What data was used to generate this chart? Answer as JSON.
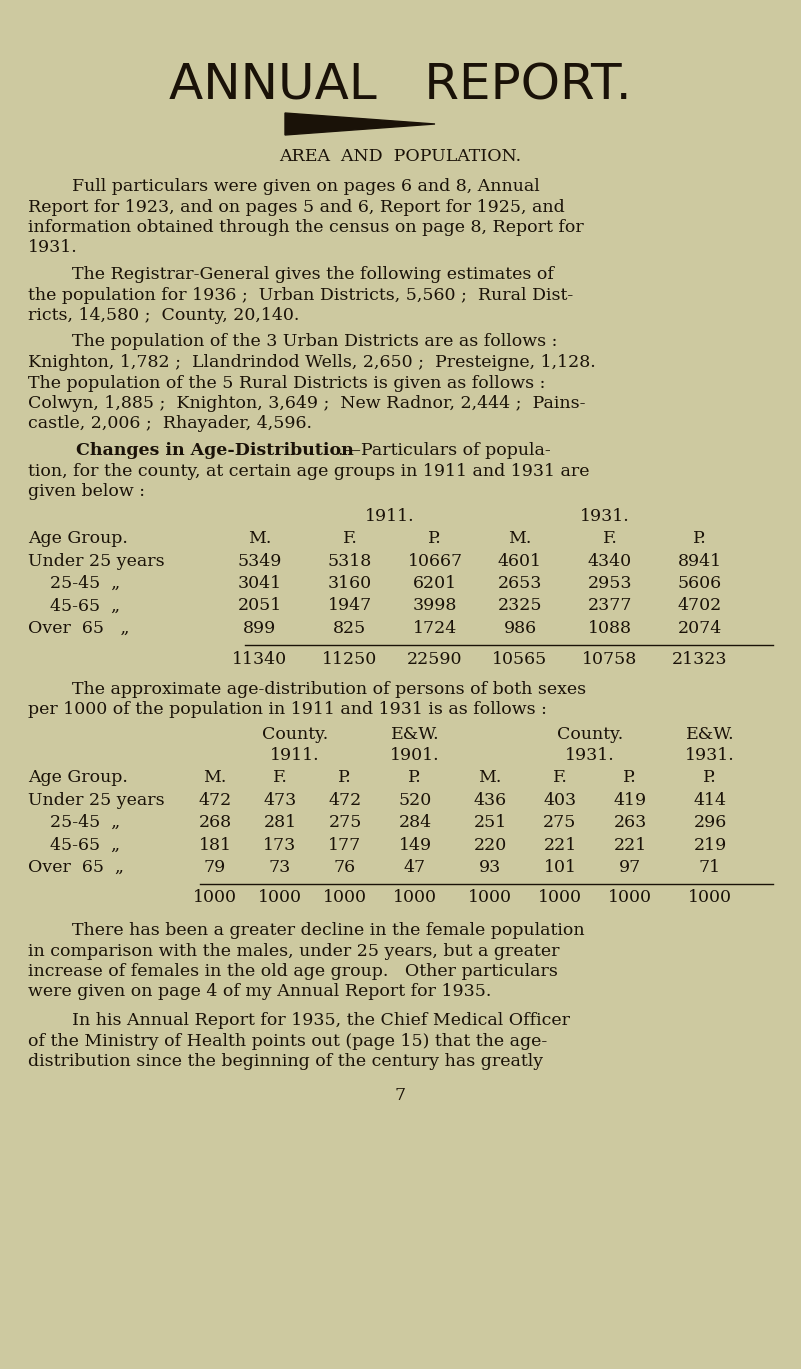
{
  "bg_color": "#cdc9a0",
  "text_color": "#1a1208",
  "title": "ANNUAL   REPORT.",
  "section_heading": "AREA  AND  POPULATION.",
  "para1_lines": [
    "        Full particulars were given on pages 6 and 8, Annual",
    "Report for 1923, and on pages 5 and 6, Report for 1925, and",
    "information obtained through the census on page 8, Report for",
    "1931."
  ],
  "para2_lines": [
    "        The Registrar-General gives the following estimates of",
    "the population for 1936 ;  Urban Districts, 5,560 ;  Rural Dist-",
    "ricts, 14,580 ;  County, 20,140."
  ],
  "para3_lines": [
    "        The population of the 3 Urban Districts are as follows :",
    "Knighton, 1,782 ;  Llandrindod Wells, 2,650 ;  Presteigne, 1,128.",
    "The population of the 5 Rural Districts is given as follows :",
    "Colwyn, 1,885 ;  Knighton, 3,649 ;  New Radnor, 2,444 ;  Pains-",
    "castle, 2,006 ;  Rhayader, 4,596."
  ],
  "changes_line1_bold": "        Changes in Age-Distribution",
  "changes_line1_normal": ".—Particulars of popula-",
  "changes_line2": "tion, for the county, at certain age groups in 1911 and 1931 are",
  "changes_line3": "given below :",
  "t1_year1_label": "1911.",
  "t1_year2_label": "1931.",
  "t1_col_headers": [
    "Age Group.",
    "M.",
    "F.",
    "P.",
    "M.",
    "F.",
    "P."
  ],
  "t1_rows": [
    [
      "Under 25 years",
      "5349",
      "5318",
      "10667",
      "4601",
      "4340",
      "8941"
    ],
    [
      "    25-45  „",
      "3041",
      "3160",
      "6201",
      "2653",
      "2953",
      "5606"
    ],
    [
      "    45-65  „",
      "2051",
      "1947",
      "3998",
      "2325",
      "2377",
      "4702"
    ],
    [
      "Over  65   „",
      "899",
      "825",
      "1724",
      "986",
      "1088",
      "2074"
    ]
  ],
  "t1_totals": [
    "",
    "11340",
    "11250",
    "22590",
    "10565",
    "10758",
    "21323"
  ],
  "approx_lines": [
    "        The approximate age-distribution of persons of both sexes",
    "per 1000 of the population in 1911 and 1931 is as follows :"
  ],
  "t2_grp1": "County.",
  "t2_grp2": "E&W.",
  "t2_grp3": "County.",
  "t2_grp4": "E&W.",
  "t2_yr1": "1911.",
  "t2_yr2": "1901.",
  "t2_yr3": "1931.",
  "t2_yr4": "1931.",
  "t2_col_headers": [
    "Age Group.",
    "M.",
    "F.",
    "P.",
    "P.",
    "M.",
    "F.",
    "P.",
    "P."
  ],
  "t2_rows": [
    [
      "Under 25 years",
      "472",
      "473",
      "472",
      "520",
      "436",
      "403",
      "419",
      "414"
    ],
    [
      "    25-45  „",
      "268",
      "281",
      "275",
      "284",
      "251",
      "275",
      "263",
      "296"
    ],
    [
      "    45-65  „",
      "181",
      "173",
      "177",
      "149",
      "220",
      "221",
      "221",
      "219"
    ],
    [
      "Over  65  „",
      "79",
      "73",
      "76",
      "47",
      "93",
      "101",
      "97",
      "71"
    ]
  ],
  "t2_totals": [
    "",
    "1000",
    "1000",
    "1000",
    "1000",
    "1000",
    "1000",
    "1000",
    "1000"
  ],
  "end1_lines": [
    "        There has been a greater decline in the female population",
    "in comparison with the males, under 25 years, but a greater",
    "increase of females in the old age group.   Other particulars",
    "were given on page 4 of my Annual Report for 1935."
  ],
  "end2_lines": [
    "        In his Annual Report for 1935, the Chief Medical Officer",
    "of the Ministry of Health points out (page 15) that the age-",
    "distribution since the beginning of the century has greatly"
  ],
  "page_number": "7"
}
